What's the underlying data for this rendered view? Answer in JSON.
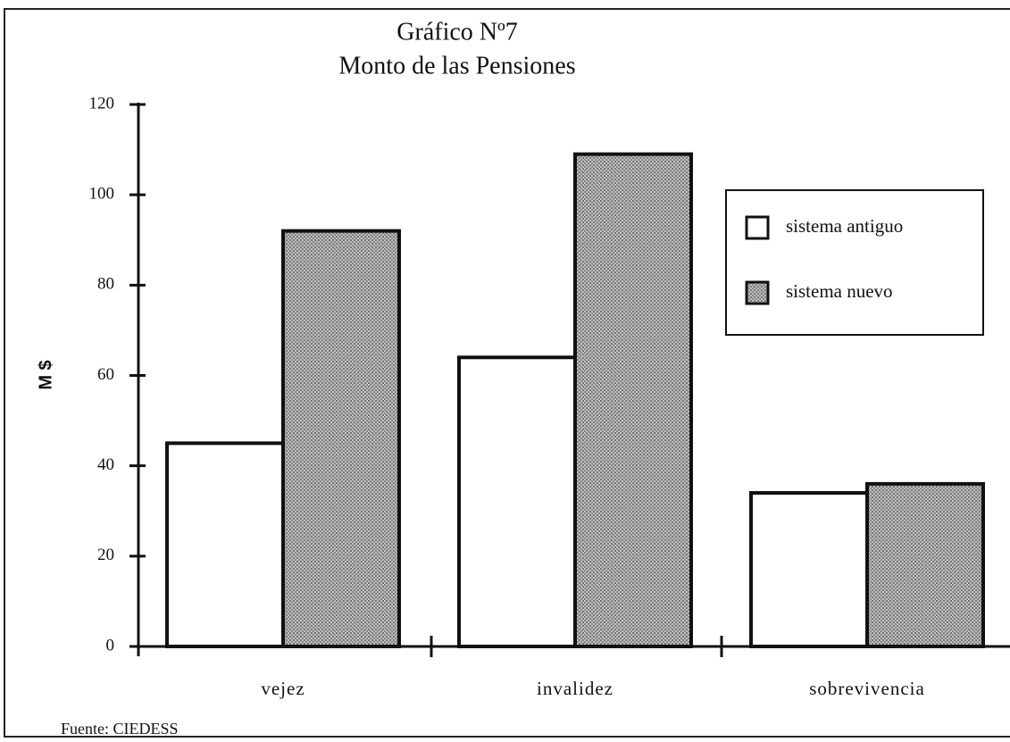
{
  "chart_data": {
    "type": "bar",
    "title": "Gráfico Nº7",
    "subtitle": "Monto de las Pensiones",
    "y_label": "M $",
    "source": "Fuente: CIEDESS",
    "categories": [
      "vejez",
      "invalidez",
      "sobrevivencia"
    ],
    "series": [
      {
        "name": "sistema antiguo",
        "color": "#ffffff",
        "values": [
          45,
          64,
          34
        ]
      },
      {
        "name": "sistema nuevo",
        "color": "#a9a9a9",
        "values": [
          92,
          109,
          36
        ]
      }
    ],
    "ylim": [
      0,
      120
    ],
    "yticks": [
      0,
      20,
      40,
      60,
      80,
      100,
      120
    ],
    "legend": "upper right"
  }
}
